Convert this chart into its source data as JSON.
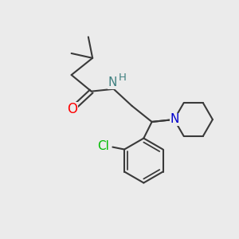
{
  "bg_color": "#EBEBEB",
  "bond_color": "#3a3a3a",
  "bond_width": 1.5,
  "atom_colors": {
    "O": "#FF0000",
    "N_amide": "#408080",
    "H": "#408080",
    "N_pip": "#0000CC",
    "Cl": "#00BB00",
    "C": "#3a3a3a"
  },
  "font_size": 11,
  "font_size_h": 9.5
}
